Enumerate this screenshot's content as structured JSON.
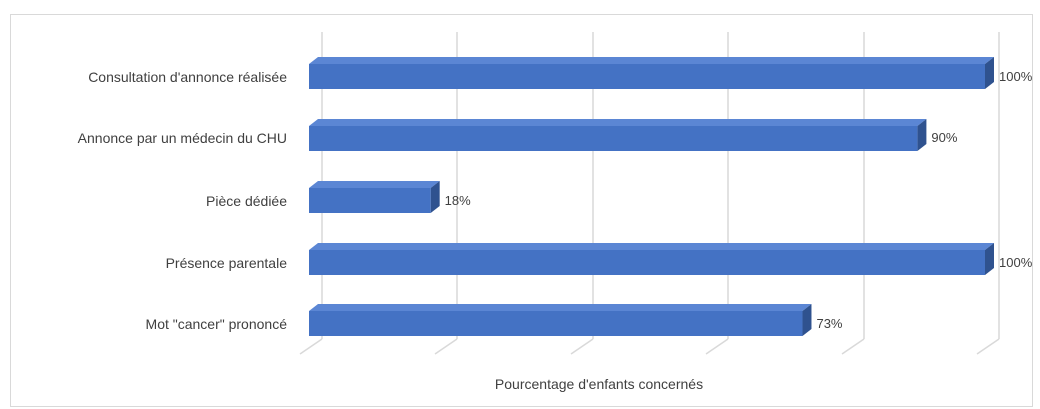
{
  "chart_data": {
    "type": "bar",
    "orientation": "horizontal",
    "three_d": true,
    "categories": [
      "Consultation d'annonce réalisée",
      "Annonce par un médecin du CHU",
      "Pièce dédiée",
      "Présence parentale",
      "Mot \"cancer\" prononcé"
    ],
    "values": [
      100,
      90,
      18,
      100,
      73
    ],
    "value_labels": [
      "100%",
      "90%",
      "18%",
      "100%",
      "73%"
    ],
    "xlabel": "Pourcentage d'enfants concernés",
    "xlim": [
      0,
      100
    ],
    "grid": true,
    "legend": "none",
    "colors": {
      "bar_front": "#4472c4",
      "bar_top": "#5b86d4",
      "bar_side": "#2f528f",
      "grid": "#d9d9d9",
      "text": "#404040"
    }
  }
}
